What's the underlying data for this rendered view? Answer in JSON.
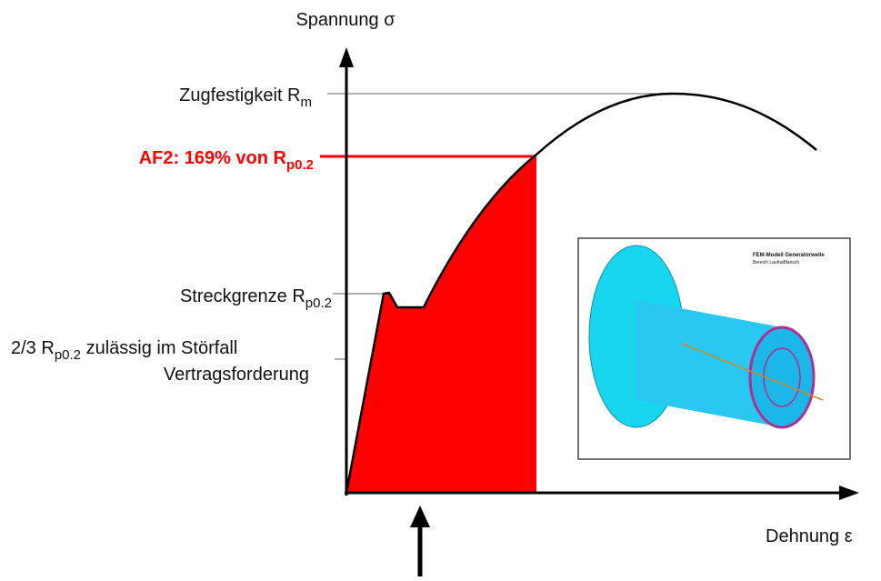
{
  "diagram": {
    "y_axis_label": "Spannung σ",
    "x_axis_label": "Dehnung ε",
    "rm": {
      "text": "Zugfestigkeit R",
      "sub": "m"
    },
    "af2": {
      "text": "AF2: 169% von R",
      "sub": "p0.2"
    },
    "rp": {
      "text": "Streckgrenze R",
      "sub": "p0.2"
    },
    "allowed": {
      "text": "2/3 R",
      "sub": "p0.2",
      "rest": " zulässig im Störfall",
      "line2": "Vertragsforderung"
    },
    "inset": {
      "title": "FEM-Modell Generatorwelle",
      "subtitle": "Bereich Laufradflansch"
    }
  }
}
